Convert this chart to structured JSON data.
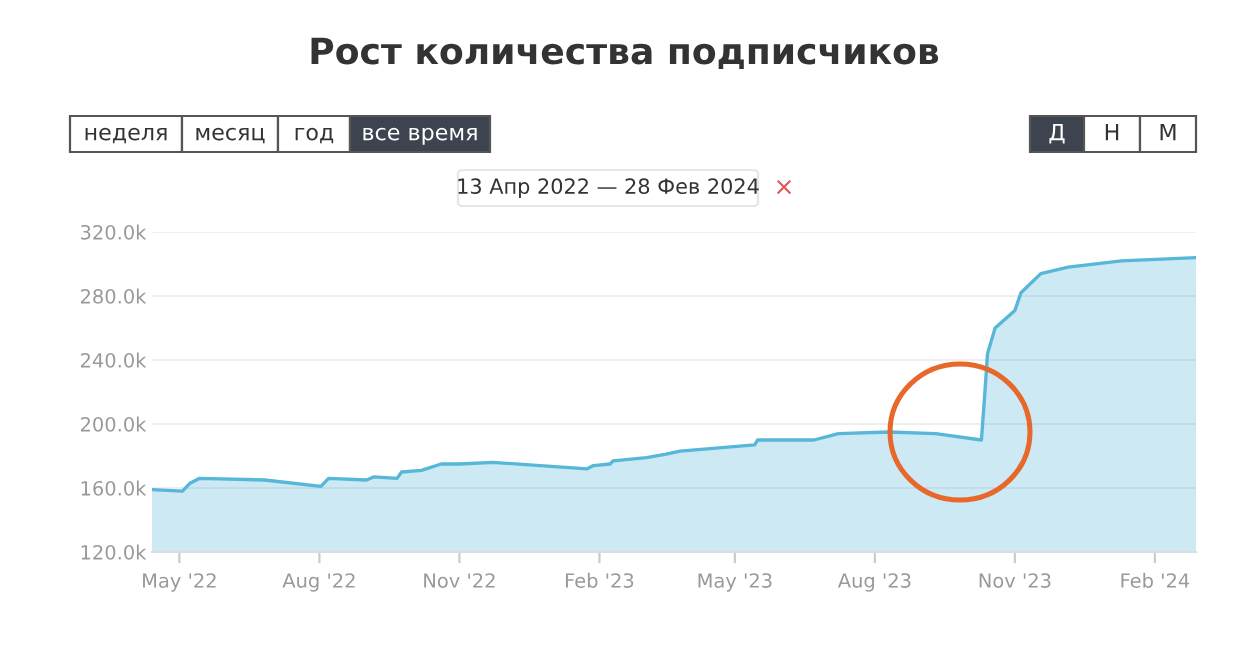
{
  "chart_data": {
    "type": "area",
    "title": "Рост количества подписчиков",
    "annotations": [
      "неделя",
      "месяц",
      "год",
      "все время",
      "Д",
      "Н",
      "М",
      "13 Апр 2022 — 28 Фев 2024",
      "×"
    ],
    "x": [
      "2022-04-13",
      "2022-05-03",
      "2022-05-08",
      "2022-05-14",
      "2022-06-26",
      "2022-08-02",
      "2022-08-07",
      "2022-09-01",
      "2022-09-06",
      "2022-09-21",
      "2022-09-24",
      "2022-10-07",
      "2022-10-20",
      "2022-11-01",
      "2022-11-23",
      "2023-01-24",
      "2023-01-28",
      "2023-02-08",
      "2023-02-10",
      "2023-03-04",
      "2023-03-16",
      "2023-03-26",
      "2023-05-14",
      "2023-05-16",
      "2023-06-22",
      "2023-07-08",
      "2023-08-10",
      "2023-09-10",
      "2023-10-10",
      "2023-10-12",
      "2023-10-14",
      "2023-10-19",
      "2023-11-01",
      "2023-11-05",
      "2023-11-18",
      "2023-12-06",
      "2024-01-10",
      "2024-02-28"
    ],
    "series": [
      {
        "color": "#56b7d9",
        "values": [
          159000,
          158000,
          163000,
          166000,
          165000,
          161000,
          166000,
          165000,
          167000,
          166000,
          170000,
          171000,
          175000,
          175000,
          176000,
          172000,
          174000,
          175000,
          177000,
          179000,
          181000,
          183000,
          187000,
          190000,
          190000,
          194000,
          195000,
          194000,
          190000,
          216000,
          244000,
          260000,
          271000,
          282000,
          294000,
          298000,
          302000,
          304000
        ]
      }
    ],
    "xlim": [
      "2022-04-13",
      "2024-02-28"
    ],
    "xticks": [
      {
        "value": "2022-05-01",
        "label": "May '22"
      },
      {
        "value": "2022-08-01",
        "label": "Aug '22"
      },
      {
        "value": "2022-11-01",
        "label": "Nov '22"
      },
      {
        "value": "2023-02-01",
        "label": "Feb '23"
      },
      {
        "value": "2023-05-01",
        "label": "May '23"
      },
      {
        "value": "2023-08-01",
        "label": "Aug '23"
      },
      {
        "value": "2023-11-01",
        "label": "Nov '23"
      },
      {
        "value": "2024-02-01",
        "label": "Feb '24"
      }
    ],
    "ylim": [
      120000,
      320000
    ],
    "yticks": [
      {
        "value": 120000,
        "label": "120.0k"
      },
      {
        "value": 160000,
        "label": "160.0k"
      },
      {
        "value": 200000,
        "label": "200.0k"
      },
      {
        "value": 240000,
        "label": "240.0k"
      },
      {
        "value": 280000,
        "label": "280.0k"
      },
      {
        "value": 320000,
        "label": "320.0k"
      }
    ],
    "grid": "y",
    "legend": false
  }
}
